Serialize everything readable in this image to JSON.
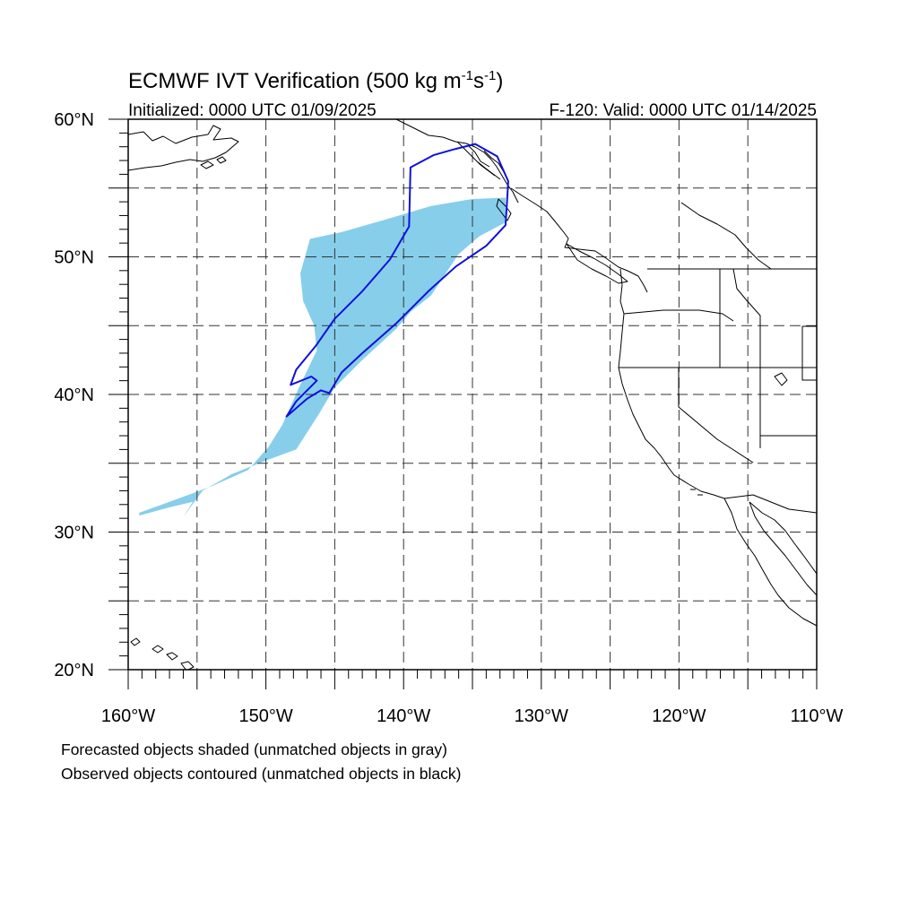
{
  "title": {
    "main": "ECMWF IVT Verification (500 kg m",
    "exp1": "-1",
    "mid": "s",
    "exp2": "-1",
    "end": ")"
  },
  "initialized": "Initialized: 0000 UTC 01/09/2025",
  "valid": "F-120: Valid: 0000 UTC 01/14/2025",
  "footnotes": [
    "Forecasted objects shaded (unmatched objects in gray)",
    "Observed objects contoured (unmatched objects in black)"
  ],
  "map": {
    "lon_range": [
      -160,
      -110
    ],
    "lat_range": [
      20,
      60
    ],
    "lon_labels": [
      {
        "lon": -160,
        "text": "160°W"
      },
      {
        "lon": -150,
        "text": "150°W"
      },
      {
        "lon": -140,
        "text": "140°W"
      },
      {
        "lon": -130,
        "text": "130°W"
      },
      {
        "lon": -120,
        "text": "120°W"
      },
      {
        "lon": -110,
        "text": "110°W"
      }
    ],
    "lat_labels": [
      {
        "lat": 60,
        "text": "60°N"
      },
      {
        "lat": 50,
        "text": "50°N"
      },
      {
        "lat": 40,
        "text": "40°N"
      },
      {
        "lat": 30,
        "text": "30°N"
      },
      {
        "lat": 20,
        "text": "20°N"
      }
    ],
    "gridline_spacing_deg": 5,
    "forecast_fill_color": "#87CEEB",
    "observed_contour_color": "#1010DD",
    "forecast_object": [
      [
        -159.2,
        31.4
      ],
      [
        -157,
        32.2
      ],
      [
        -154,
        33.3
      ],
      [
        -151.3,
        34.5
      ],
      [
        -149.8,
        36.2
      ],
      [
        -148.8,
        37.8
      ],
      [
        -147.6,
        40.5
      ],
      [
        -146.3,
        43.2
      ],
      [
        -146.5,
        45
      ],
      [
        -147.3,
        46.8
      ],
      [
        -147.5,
        48.8
      ],
      [
        -146.8,
        51.3
      ],
      [
        -144.5,
        51.8
      ],
      [
        -141,
        52.8
      ],
      [
        -138,
        53.7
      ],
      [
        -135,
        54.2
      ],
      [
        -132.6,
        54.3
      ],
      [
        -132.6,
        52.5
      ],
      [
        -134.5,
        51.5
      ],
      [
        -136,
        50.2
      ],
      [
        -138,
        47.2
      ],
      [
        -139.5,
        46
      ],
      [
        -140.5,
        44.8
      ],
      [
        -143,
        42.5
      ],
      [
        -145,
        40.5
      ],
      [
        -146.2,
        38.5
      ],
      [
        -147.8,
        36
      ],
      [
        -150,
        35.2
      ],
      [
        -152.5,
        34.2
      ],
      [
        -154.6,
        33
      ],
      [
        -156,
        31.1
      ],
      [
        -155.3,
        32.2
      ],
      [
        -157,
        31.8
      ],
      [
        -159.2,
        31.2
      ]
    ],
    "observed_object": [
      [
        -136.4,
        57.8
      ],
      [
        -134.8,
        58.2
      ],
      [
        -133.2,
        57.3
      ],
      [
        -132.4,
        55.5
      ],
      [
        -132.5,
        53.8
      ],
      [
        -132.6,
        52.3
      ],
      [
        -134,
        50.8
      ],
      [
        -136.2,
        49.3
      ],
      [
        -138.2,
        47.5
      ],
      [
        -140.5,
        45.2
      ],
      [
        -143,
        43
      ],
      [
        -144.5,
        41.6
      ],
      [
        -145.4,
        40.1
      ],
      [
        -146,
        40.3
      ],
      [
        -147,
        39.7
      ],
      [
        -148.5,
        38.4
      ],
      [
        -147.8,
        39.5
      ],
      [
        -146.3,
        41
      ],
      [
        -146.7,
        41.3
      ],
      [
        -148.2,
        40.7
      ],
      [
        -147.8,
        41.8
      ],
      [
        -146.4,
        43.5
      ],
      [
        -145,
        45.5
      ],
      [
        -143,
        47.5
      ],
      [
        -141,
        49.8
      ],
      [
        -139.6,
        52.2
      ],
      [
        -139.5,
        56.5
      ],
      [
        -137.8,
        57.4
      ],
      [
        -136.4,
        57.8
      ]
    ]
  }
}
